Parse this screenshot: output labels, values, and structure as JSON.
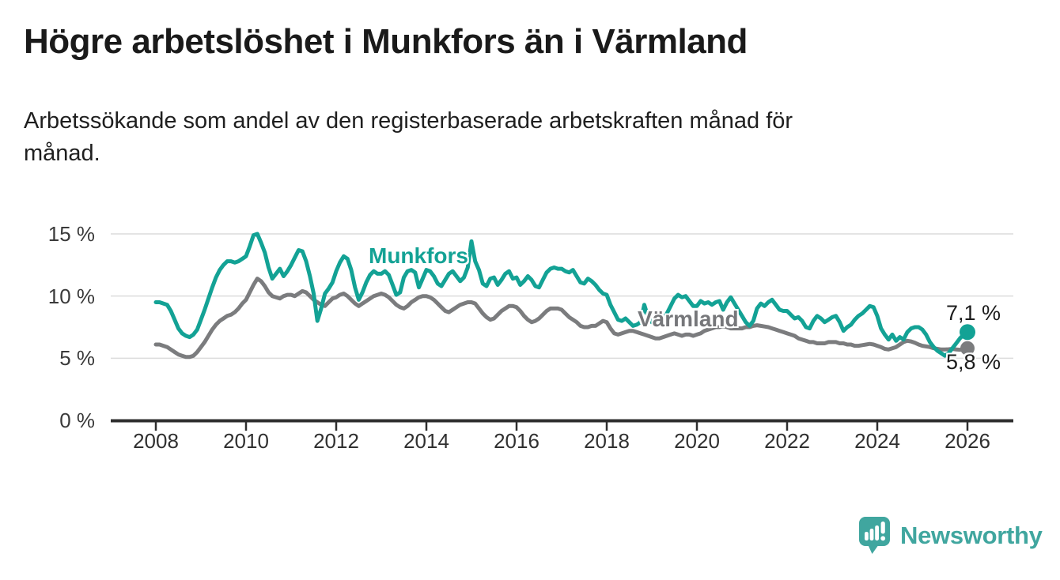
{
  "header": {
    "title": "Högre arbetslöshet i Munkfors än i Värmland",
    "subtitle_line1": "Arbetssökande som andel av den registerbaserade arbetskraften månad för",
    "subtitle_line2": "månad."
  },
  "footer": {
    "brand": "Newsworthy"
  },
  "colors": {
    "munkfors": "#13a295",
    "varmland": "#7b7c7e",
    "varmland_label": "#76777a",
    "grid": "#dcdcdc",
    "axis": "#2e2e2e",
    "logo_teal": "#40a69f"
  },
  "chart_data": {
    "type": "line",
    "unit": "%",
    "frequency": "monthly",
    "x_start_year": 2008,
    "x_end_year": 2026,
    "x_range": [
      2007,
      2027
    ],
    "y_range": [
      0,
      16.4
    ],
    "grid": "horizontal",
    "y_ticks": [
      {
        "value": 15,
        "label": "15 %"
      },
      {
        "value": 10,
        "label": "10 %"
      },
      {
        "value": 5,
        "label": "5 %"
      },
      {
        "value": 0,
        "label": "0 %"
      }
    ],
    "x_ticks": [
      {
        "value": 2008,
        "label": "2008"
      },
      {
        "value": 2010,
        "label": "2010"
      },
      {
        "value": 2012,
        "label": "2012"
      },
      {
        "value": 2014,
        "label": "2014"
      },
      {
        "value": 2016,
        "label": "2016"
      },
      {
        "value": 2018,
        "label": "2018"
      },
      {
        "value": 2020,
        "label": "2020"
      },
      {
        "value": 2022,
        "label": "2022"
      },
      {
        "value": 2024,
        "label": "2024"
      },
      {
        "value": 2026,
        "label": "2026"
      }
    ],
    "series": [
      {
        "name": "Munkfors",
        "color": "#13a295",
        "end_label": "7,1 %",
        "end_value": 7.1,
        "values": [
          9.5,
          9.5,
          9.4,
          9.3,
          8.8,
          8.1,
          7.4,
          7.0,
          6.8,
          6.7,
          6.9,
          7.3,
          8.1,
          8.9,
          9.8,
          10.7,
          11.5,
          12.1,
          12.5,
          12.8,
          12.8,
          12.7,
          12.8,
          13.0,
          13.2,
          14.0,
          14.9,
          15.0,
          14.3,
          13.5,
          12.3,
          11.4,
          11.8,
          12.2,
          11.6,
          12.0,
          12.5,
          13.1,
          13.7,
          13.6,
          12.8,
          11.6,
          10.2,
          8.0,
          9.0,
          10.2,
          10.6,
          11.1,
          12.0,
          12.7,
          13.2,
          13.0,
          12.1,
          10.7,
          9.7,
          10.3,
          11.1,
          11.7,
          12.0,
          11.8,
          11.8,
          12.0,
          11.7,
          10.9,
          10.1,
          10.3,
          11.5,
          12.0,
          12.1,
          11.9,
          10.7,
          11.4,
          12.1,
          12.0,
          11.6,
          11.0,
          10.8,
          11.3,
          11.8,
          12.0,
          11.6,
          11.2,
          11.5,
          12.3,
          14.4,
          12.8,
          12.1,
          11.0,
          10.8,
          11.4,
          11.5,
          10.9,
          11.3,
          11.8,
          12.0,
          11.4,
          11.5,
          10.9,
          11.2,
          11.6,
          11.3,
          10.8,
          10.7,
          11.3,
          11.9,
          12.2,
          12.3,
          12.2,
          12.2,
          12.0,
          11.9,
          12.1,
          11.6,
          11.1,
          11.0,
          11.4,
          11.2,
          10.9,
          10.5,
          10.2,
          10.1,
          9.3,
          8.7,
          8.1,
          8.0,
          8.2,
          7.9,
          7.6,
          7.7,
          7.9,
          9.3,
          8.3,
          7.9,
          7.8,
          8.0,
          8.2,
          8.6,
          9.2,
          9.8,
          10.1,
          9.9,
          10.0,
          9.6,
          9.2,
          9.2,
          9.6,
          9.4,
          9.5,
          9.3,
          9.5,
          9.6,
          8.9,
          9.5,
          9.9,
          9.4,
          8.9,
          8.4,
          7.9,
          7.6,
          8.0,
          9.0,
          9.4,
          9.2,
          9.5,
          9.7,
          9.3,
          8.9,
          8.8,
          8.8,
          8.5,
          8.2,
          8.3,
          8.0,
          7.5,
          7.4,
          8.0,
          8.4,
          8.2,
          7.9,
          8.1,
          8.3,
          8.4,
          7.9,
          7.2,
          7.5,
          7.7,
          8.1,
          8.4,
          8.6,
          8.9,
          9.2,
          9.1,
          8.4,
          7.4,
          6.9,
          6.5,
          6.9,
          6.4,
          6.7,
          6.5,
          7.1,
          7.4,
          7.5,
          7.5,
          7.3,
          6.9,
          6.3,
          5.9,
          5.6,
          5.4,
          5.2,
          5.4,
          5.8,
          6.2,
          6.6,
          6.9,
          7.1
        ]
      },
      {
        "name": "Värmland",
        "color": "#7b7c7e",
        "end_label": "5,8 %",
        "end_value": 5.8,
        "values": [
          6.1,
          6.1,
          6.0,
          5.9,
          5.7,
          5.5,
          5.3,
          5.2,
          5.1,
          5.1,
          5.2,
          5.5,
          5.9,
          6.3,
          6.8,
          7.3,
          7.7,
          8.0,
          8.2,
          8.4,
          8.5,
          8.7,
          9.0,
          9.4,
          9.7,
          10.3,
          10.9,
          11.4,
          11.2,
          10.8,
          10.3,
          10.0,
          9.9,
          9.8,
          10.0,
          10.1,
          10.1,
          10.0,
          10.2,
          10.4,
          10.3,
          10.0,
          9.7,
          9.5,
          9.3,
          9.2,
          9.5,
          9.8,
          9.9,
          10.1,
          10.2,
          10.0,
          9.7,
          9.4,
          9.2,
          9.4,
          9.6,
          9.8,
          10.0,
          10.1,
          10.2,
          10.1,
          9.9,
          9.6,
          9.3,
          9.1,
          9.0,
          9.2,
          9.5,
          9.7,
          9.9,
          10.0,
          10.0,
          9.9,
          9.7,
          9.4,
          9.1,
          8.8,
          8.7,
          8.9,
          9.1,
          9.3,
          9.4,
          9.5,
          9.5,
          9.4,
          9.0,
          8.6,
          8.3,
          8.1,
          8.2,
          8.5,
          8.8,
          9.0,
          9.2,
          9.2,
          9.1,
          8.8,
          8.4,
          8.1,
          7.9,
          8.0,
          8.2,
          8.5,
          8.8,
          9.0,
          9.0,
          9.0,
          8.9,
          8.6,
          8.3,
          8.1,
          7.9,
          7.6,
          7.5,
          7.5,
          7.6,
          7.6,
          7.8,
          8.0,
          7.9,
          7.4,
          7.0,
          6.9,
          7.0,
          7.1,
          7.2,
          7.2,
          7.1,
          7.0,
          6.9,
          6.8,
          6.7,
          6.6,
          6.6,
          6.7,
          6.8,
          6.9,
          7.0,
          6.9,
          6.8,
          6.9,
          6.9,
          6.8,
          6.9,
          7.0,
          7.2,
          7.3,
          7.4,
          7.5,
          7.5,
          7.6,
          7.5,
          7.4,
          7.4,
          7.4,
          7.4,
          7.5,
          7.5,
          7.6,
          7.65,
          7.6,
          7.55,
          7.5,
          7.4,
          7.3,
          7.2,
          7.1,
          7.0,
          6.9,
          6.8,
          6.6,
          6.5,
          6.4,
          6.3,
          6.3,
          6.2,
          6.2,
          6.2,
          6.3,
          6.3,
          6.3,
          6.2,
          6.2,
          6.1,
          6.1,
          6.0,
          6.0,
          6.05,
          6.1,
          6.15,
          6.1,
          6.0,
          5.9,
          5.75,
          5.7,
          5.8,
          5.9,
          6.1,
          6.3,
          6.4,
          6.35,
          6.25,
          6.1,
          6.0,
          5.95,
          5.9,
          5.8,
          5.75,
          5.7,
          5.7,
          5.72,
          5.75,
          5.7,
          5.68,
          5.7,
          5.8
        ]
      }
    ]
  }
}
